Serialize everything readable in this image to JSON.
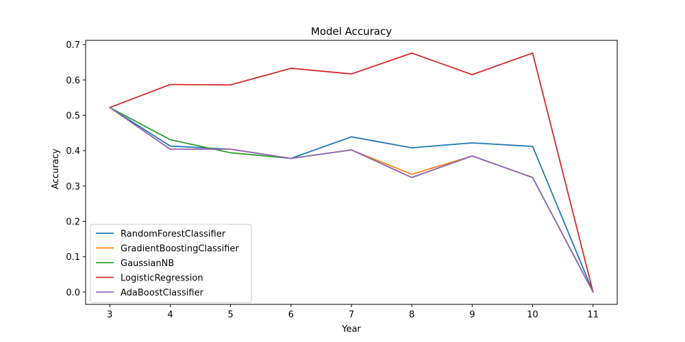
{
  "chart_data": {
    "type": "line",
    "title": "Model Accuracy",
    "xlabel": "Year",
    "ylabel": "Accuracy",
    "x": [
      3,
      4,
      5,
      6,
      7,
      8,
      9,
      10,
      11
    ],
    "xlim": [
      2.6,
      11.4
    ],
    "ylim": [
      -0.035,
      0.712
    ],
    "x_ticks": [
      3,
      4,
      5,
      6,
      7,
      8,
      9,
      10,
      11
    ],
    "y_ticks": [
      0.0,
      0.1,
      0.2,
      0.3,
      0.4,
      0.5,
      0.6,
      0.7
    ],
    "y_tick_labels": [
      "0.0",
      "0.1",
      "0.2",
      "0.3",
      "0.4",
      "0.5",
      "0.6",
      "0.7"
    ],
    "grid": false,
    "legend_position": "lower-left",
    "series": [
      {
        "name": "RandomForestClassifier",
        "color": "#1f77b4",
        "values": [
          0.522,
          0.413,
          0.404,
          0.378,
          0.439,
          0.408,
          0.422,
          0.412,
          0.0
        ]
      },
      {
        "name": "GradientBoostingClassifier",
        "color": "#ff7f0e",
        "values": [
          0.522,
          0.404,
          0.404,
          0.378,
          0.402,
          0.333,
          0.385,
          0.324,
          0.0
        ]
      },
      {
        "name": "GaussianNB",
        "color": "#2ca02c",
        "values": [
          0.522,
          0.431,
          0.394,
          0.378,
          0.402,
          0.324,
          0.385,
          0.324,
          0.0
        ]
      },
      {
        "name": "LogisticRegression",
        "color": "#d62728",
        "values": [
          0.522,
          0.587,
          0.586,
          0.633,
          0.617,
          0.676,
          0.615,
          0.676,
          0.0
        ]
      },
      {
        "name": "AdaBoostClassifier",
        "color": "#9467bd",
        "values": [
          0.522,
          0.404,
          0.404,
          0.378,
          0.402,
          0.324,
          0.385,
          0.324,
          0.0
        ]
      }
    ]
  }
}
